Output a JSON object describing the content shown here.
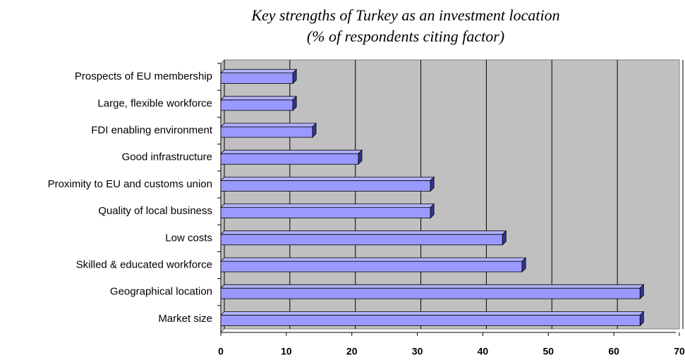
{
  "chart_data": {
    "type": "bar",
    "orientation": "horizontal",
    "title": [
      "Key strengths of Turkey as an investment location",
      "(% of respondents citing factor)"
    ],
    "categories": [
      "Prospects of EU membership",
      "Large, flexible workforce",
      "FDI enabling environment",
      "Good infrastructure",
      "Proximity to EU and customs union",
      "Quality of local business",
      "Low costs",
      "Skilled & educated workforce",
      "Geographical location",
      "Market size"
    ],
    "values": [
      11,
      11,
      14,
      21,
      32,
      32,
      43,
      46,
      64,
      64
    ],
    "color": "#9999ff",
    "xlim": [
      0,
      70
    ],
    "xticks": [
      0,
      10,
      20,
      30,
      40,
      50,
      60,
      70
    ],
    "grid": true
  }
}
